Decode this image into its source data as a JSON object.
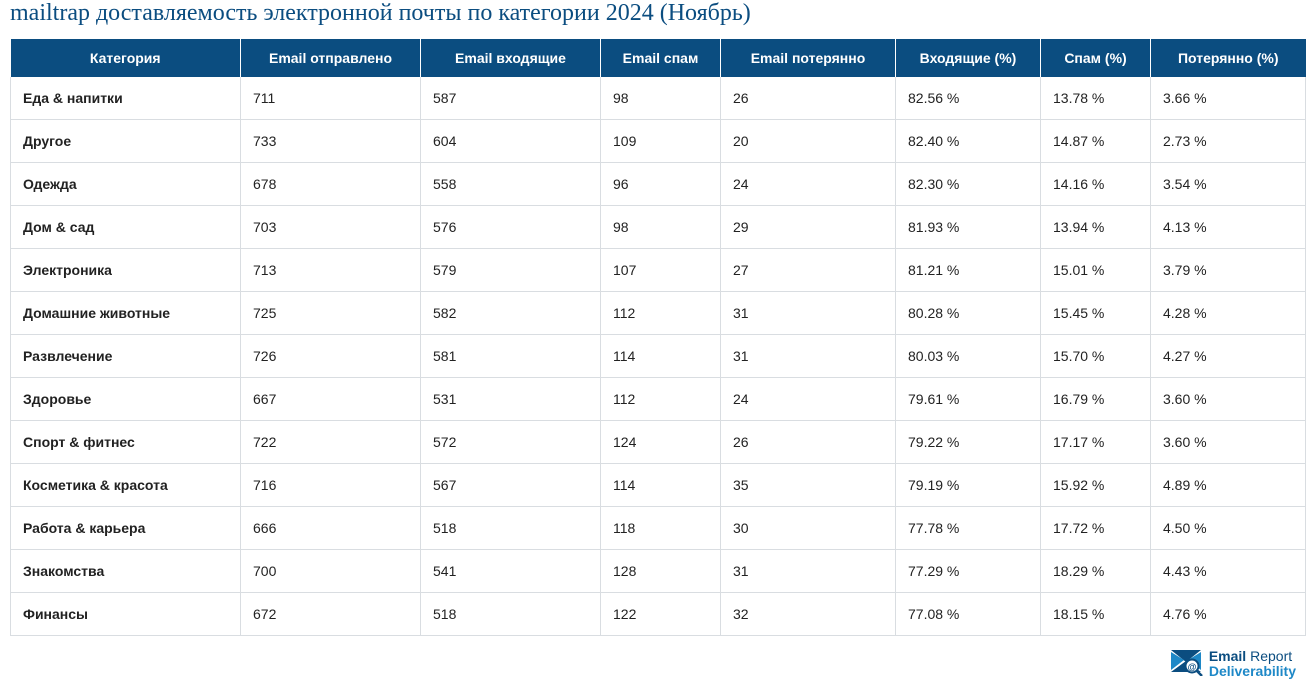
{
  "title": "mailtrap доставляемость электронной почты по категории 2024 (Ноябрь)",
  "colors": {
    "header_bg": "#0b4d80",
    "header_text": "#ffffff",
    "title_text": "#0b4d80",
    "row_border": "#d9dde1",
    "cell_text": "#222222",
    "logo_primary": "#0b4d80",
    "logo_secondary": "#1e88c7"
  },
  "columns": [
    {
      "key": "category",
      "label": "Категория",
      "class": "col-cat"
    },
    {
      "key": "sent",
      "label": "Email отправлено",
      "class": "col-sent"
    },
    {
      "key": "inbox",
      "label": "Email входящие",
      "class": "col-inbox"
    },
    {
      "key": "spam",
      "label": "Email спам",
      "class": "col-spam"
    },
    {
      "key": "lost",
      "label": "Email потерянно",
      "class": "col-lost"
    },
    {
      "key": "p_inbox",
      "label": "Входящие (%)",
      "class": "col-pinbox"
    },
    {
      "key": "p_spam",
      "label": "Спам (%)",
      "class": "col-pspam"
    },
    {
      "key": "p_lost",
      "label": "Потерянно (%)",
      "class": "col-plost"
    }
  ],
  "rows": [
    {
      "category": "Еда & напитки",
      "sent": "711",
      "inbox": "587",
      "spam": "98",
      "lost": "26",
      "p_inbox": "82.56 %",
      "p_spam": "13.78 %",
      "p_lost": "3.66 %"
    },
    {
      "category": "Другое",
      "sent": "733",
      "inbox": "604",
      "spam": "109",
      "lost": "20",
      "p_inbox": "82.40 %",
      "p_spam": "14.87 %",
      "p_lost": "2.73 %"
    },
    {
      "category": "Одежда",
      "sent": "678",
      "inbox": "558",
      "spam": "96",
      "lost": "24",
      "p_inbox": "82.30 %",
      "p_spam": "14.16 %",
      "p_lost": "3.54 %"
    },
    {
      "category": "Дом & сад",
      "sent": "703",
      "inbox": "576",
      "spam": "98",
      "lost": "29",
      "p_inbox": "81.93 %",
      "p_spam": "13.94 %",
      "p_lost": "4.13 %"
    },
    {
      "category": "Электроника",
      "sent": "713",
      "inbox": "579",
      "spam": "107",
      "lost": "27",
      "p_inbox": "81.21 %",
      "p_spam": "15.01 %",
      "p_lost": "3.79 %"
    },
    {
      "category": "Домашние животные",
      "sent": "725",
      "inbox": "582",
      "spam": "112",
      "lost": "31",
      "p_inbox": "80.28 %",
      "p_spam": "15.45 %",
      "p_lost": "4.28 %"
    },
    {
      "category": "Развлечение",
      "sent": "726",
      "inbox": "581",
      "spam": "114",
      "lost": "31",
      "p_inbox": "80.03 %",
      "p_spam": "15.70 %",
      "p_lost": "4.27 %"
    },
    {
      "category": "Здоровье",
      "sent": "667",
      "inbox": "531",
      "spam": "112",
      "lost": "24",
      "p_inbox": "79.61 %",
      "p_spam": "16.79 %",
      "p_lost": "3.60 %"
    },
    {
      "category": "Спорт & фитнес",
      "sent": "722",
      "inbox": "572",
      "spam": "124",
      "lost": "26",
      "p_inbox": "79.22 %",
      "p_spam": "17.17 %",
      "p_lost": "3.60 %"
    },
    {
      "category": "Косметика & красота",
      "sent": "716",
      "inbox": "567",
      "spam": "114",
      "lost": "35",
      "p_inbox": "79.19 %",
      "p_spam": "15.92 %",
      "p_lost": "4.89 %"
    },
    {
      "category": "Работа & карьера",
      "sent": "666",
      "inbox": "518",
      "spam": "118",
      "lost": "30",
      "p_inbox": "77.78 %",
      "p_spam": "17.72 %",
      "p_lost": "4.50 %"
    },
    {
      "category": "Знакомства",
      "sent": "700",
      "inbox": "541",
      "spam": "128",
      "lost": "31",
      "p_inbox": "77.29 %",
      "p_spam": "18.29 %",
      "p_lost": "4.43 %"
    },
    {
      "category": "Финансы",
      "sent": "672",
      "inbox": "518",
      "spam": "122",
      "lost": "32",
      "p_inbox": "77.08 %",
      "p_spam": "18.15 %",
      "p_lost": "4.76 %"
    }
  ],
  "logo": {
    "line1a": "Email",
    "line1b": "Report",
    "line2": "Deliverability"
  }
}
